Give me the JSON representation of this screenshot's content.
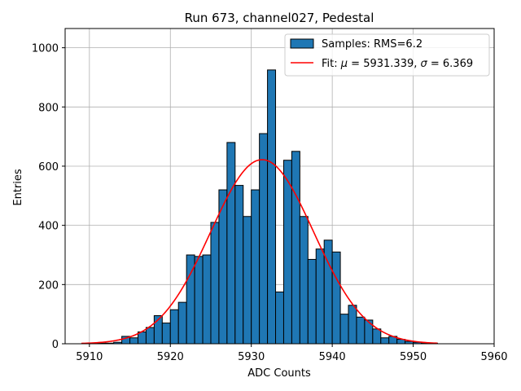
{
  "chart_data": {
    "type": "histogram",
    "title": "Run 673, channel027, Pedestal",
    "xlabel": "ADC Counts",
    "ylabel": "Entries",
    "xlim": [
      5907,
      5960
    ],
    "ylim": [
      0,
      1065
    ],
    "xticks": [
      5910,
      5920,
      5930,
      5940,
      5950,
      5960
    ],
    "yticks": [
      0,
      200,
      400,
      600,
      800,
      1000
    ],
    "grid": true,
    "legend_position": "top-right",
    "bin_width": 1,
    "bars": {
      "name": "Samples: RMS=6.2",
      "color": "#1f77b4",
      "bin_left": [
        5910,
        5911,
        5912,
        5913,
        5914,
        5915,
        5916,
        5917,
        5918,
        5919,
        5920,
        5921,
        5922,
        5923,
        5924,
        5925,
        5926,
        5927,
        5928,
        5929,
        5930,
        5931,
        5932,
        5933,
        5934,
        5935,
        5936,
        5937,
        5938,
        5939,
        5940,
        5941,
        5942,
        5943,
        5944,
        5945,
        5946,
        5947,
        5948,
        5949,
        5950,
        5951,
        5952
      ],
      "values": [
        2,
        2,
        2,
        5,
        25,
        20,
        40,
        55,
        95,
        70,
        115,
        140,
        300,
        295,
        300,
        410,
        520,
        680,
        535,
        430,
        520,
        710,
        925,
        175,
        620,
        650,
        430,
        285,
        320,
        350,
        310,
        100,
        130,
        90,
        80,
        50,
        20,
        25,
        15,
        8,
        5,
        3,
        2
      ]
    },
    "fit": {
      "name": "Fit: μ = 5931.339, σ = 6.369",
      "name_plain": "Fit: ",
      "name_mu": "μ",
      "name_mid": " = 5931.339, ",
      "name_sigma": "σ",
      "name_end": " = 6.369",
      "color": "#ff0000",
      "mu": 5931.339,
      "sigma": 6.369,
      "amplitude": 622,
      "x_range": [
        5909,
        5953
      ]
    }
  }
}
